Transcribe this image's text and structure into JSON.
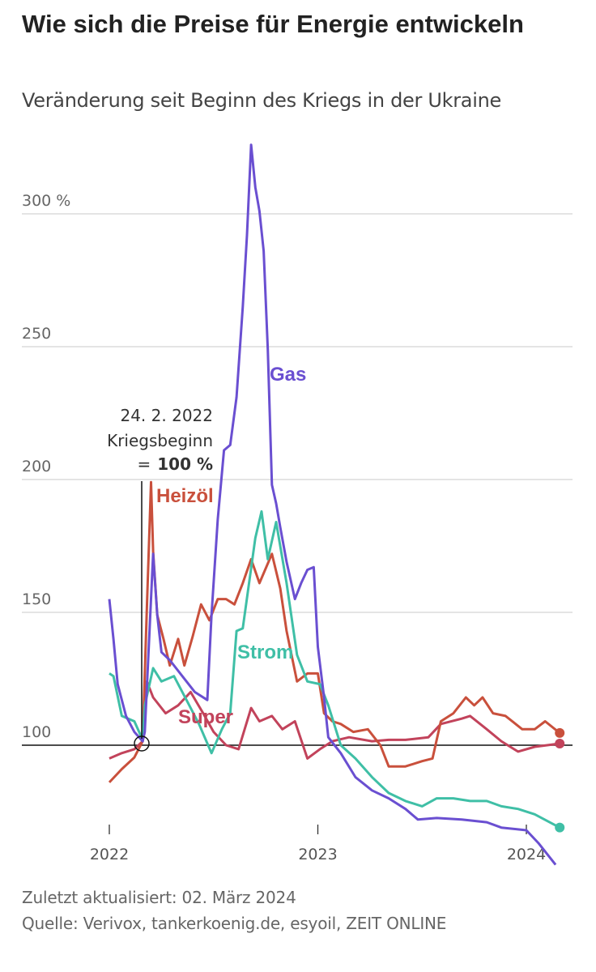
{
  "header": {
    "title": "Wie sich die Preise für Energie entwickeln",
    "subtitle": "Veränderung seit Beginn des Kriegs in der Ukraine"
  },
  "footer": {
    "updated": "Zuletzt aktualisiert: 02. März 2024",
    "source": "Quelle: Verivox, tankerkoenig.de, esyoil, ZEIT ONLINE"
  },
  "chart_data": {
    "type": "line",
    "title": "Wie sich die Preise für Energie entwickeln",
    "subtitle": "Veränderung seit Beginn des Kriegs in der Ukraine",
    "xlabel": "",
    "ylabel": "",
    "xlim": [
      2021.75,
      2024.2
    ],
    "ylim": [
      50,
      330
    ],
    "y_ticks": [
      100,
      150,
      200,
      250,
      300
    ],
    "y_tick_labels": [
      "100",
      "150",
      "200",
      "250",
      "300 %"
    ],
    "x_ticks": [
      2022,
      2023,
      2024
    ],
    "x_tick_labels": [
      "2022",
      "2023",
      "2024"
    ],
    "grid": "horizontal",
    "baseline": 100,
    "annotation": {
      "date_label": "24. 2. 2022",
      "text": "Kriegsbeginn",
      "eq": "=",
      "value": "100 %",
      "x": 2022.16,
      "y": 100
    },
    "series": [
      {
        "name": "Gas",
        "color": "#6a4fd1",
        "end_dot": false,
        "points": [
          [
            2022.0,
            155
          ],
          [
            2022.02,
            140
          ],
          [
            2022.04,
            123
          ],
          [
            2022.08,
            111
          ],
          [
            2022.12,
            105
          ],
          [
            2022.16,
            101.5
          ],
          [
            2022.17,
            105
          ],
          [
            2022.21,
            172
          ],
          [
            2022.23,
            149
          ],
          [
            2022.25,
            135
          ],
          [
            2022.29,
            132
          ],
          [
            2022.35,
            126
          ],
          [
            2022.41,
            120
          ],
          [
            2022.47,
            117
          ],
          [
            2022.49,
            149
          ],
          [
            2022.52,
            185
          ],
          [
            2022.55,
            211
          ],
          [
            2022.58,
            213
          ],
          [
            2022.61,
            231
          ],
          [
            2022.64,
            265
          ],
          [
            2022.66,
            292
          ],
          [
            2022.68,
            326
          ],
          [
            2022.7,
            310
          ],
          [
            2022.72,
            301
          ],
          [
            2022.74,
            286
          ],
          [
            2022.76,
            249
          ],
          [
            2022.78,
            198
          ],
          [
            2022.8,
            191
          ],
          [
            2022.82,
            182
          ],
          [
            2022.85,
            169
          ],
          [
            2022.89,
            155
          ],
          [
            2022.92,
            161
          ],
          [
            2022.95,
            166
          ],
          [
            2022.98,
            167
          ],
          [
            2023.0,
            137
          ],
          [
            2023.03,
            118
          ],
          [
            2023.05,
            103
          ],
          [
            2023.11,
            97
          ],
          [
            2023.18,
            88
          ],
          [
            2023.26,
            83
          ],
          [
            2023.34,
            80
          ],
          [
            2023.42,
            76
          ],
          [
            2023.48,
            72
          ],
          [
            2023.57,
            72.6
          ],
          [
            2023.69,
            72
          ],
          [
            2023.81,
            71
          ],
          [
            2023.88,
            69
          ],
          [
            2024.0,
            68
          ],
          [
            2024.06,
            63
          ],
          [
            2024.14,
            55
          ]
        ]
      },
      {
        "name": "Heizöl",
        "color": "#c9503c",
        "end_dot": true,
        "points": [
          [
            2022.0,
            86
          ],
          [
            2022.06,
            91
          ],
          [
            2022.12,
            95.4
          ],
          [
            2022.16,
            101.5
          ],
          [
            2022.18,
            152
          ],
          [
            2022.2,
            199
          ],
          [
            2022.21,
            173
          ],
          [
            2022.23,
            149
          ],
          [
            2022.26,
            140
          ],
          [
            2022.29,
            130
          ],
          [
            2022.33,
            140
          ],
          [
            2022.36,
            130
          ],
          [
            2022.4,
            141
          ],
          [
            2022.44,
            153
          ],
          [
            2022.48,
            147
          ],
          [
            2022.52,
            155
          ],
          [
            2022.56,
            155
          ],
          [
            2022.6,
            153
          ],
          [
            2022.64,
            161
          ],
          [
            2022.68,
            170
          ],
          [
            2022.72,
            161
          ],
          [
            2022.78,
            172
          ],
          [
            2022.82,
            159
          ],
          [
            2022.85,
            143
          ],
          [
            2022.9,
            124
          ],
          [
            2022.95,
            127
          ],
          [
            2023.0,
            127
          ],
          [
            2023.03,
            112
          ],
          [
            2023.07,
            109
          ],
          [
            2023.11,
            108
          ],
          [
            2023.17,
            105
          ],
          [
            2023.24,
            106
          ],
          [
            2023.3,
            100
          ],
          [
            2023.34,
            92
          ],
          [
            2023.42,
            92
          ],
          [
            2023.5,
            94
          ],
          [
            2023.55,
            95
          ],
          [
            2023.59,
            109
          ],
          [
            2023.65,
            112
          ],
          [
            2023.71,
            118
          ],
          [
            2023.75,
            115
          ],
          [
            2023.79,
            118
          ],
          [
            2023.84,
            112
          ],
          [
            2023.9,
            111
          ],
          [
            2023.98,
            106
          ],
          [
            2024.04,
            106
          ],
          [
            2024.09,
            109
          ],
          [
            2024.16,
            104.6
          ]
        ]
      },
      {
        "name": "Strom",
        "color": "#3fbfa6",
        "end_dot": true,
        "points": [
          [
            2022.0,
            127
          ],
          [
            2022.02,
            126
          ],
          [
            2022.06,
            111
          ],
          [
            2022.12,
            109
          ],
          [
            2022.16,
            102
          ],
          [
            2022.17,
            115
          ],
          [
            2022.21,
            129
          ],
          [
            2022.25,
            124
          ],
          [
            2022.31,
            126
          ],
          [
            2022.37,
            117
          ],
          [
            2022.43,
            108
          ],
          [
            2022.49,
            97
          ],
          [
            2022.54,
            106
          ],
          [
            2022.58,
            112
          ],
          [
            2022.61,
            143
          ],
          [
            2022.64,
            144
          ],
          [
            2022.7,
            178
          ],
          [
            2022.73,
            188
          ],
          [
            2022.76,
            170
          ],
          [
            2022.8,
            184
          ],
          [
            2022.85,
            161
          ],
          [
            2022.9,
            134
          ],
          [
            2022.95,
            124
          ],
          [
            2023.01,
            123
          ],
          [
            2023.05,
            115
          ],
          [
            2023.11,
            100
          ],
          [
            2023.18,
            95
          ],
          [
            2023.26,
            88
          ],
          [
            2023.34,
            82
          ],
          [
            2023.42,
            79
          ],
          [
            2023.5,
            77
          ],
          [
            2023.57,
            80
          ],
          [
            2023.65,
            80
          ],
          [
            2023.73,
            79
          ],
          [
            2023.81,
            79
          ],
          [
            2023.88,
            77
          ],
          [
            2023.96,
            76
          ],
          [
            2024.04,
            74
          ],
          [
            2024.16,
            69
          ]
        ]
      },
      {
        "name": "Super",
        "color": "#c2435b",
        "end_dot": true,
        "points": [
          [
            2022.0,
            95
          ],
          [
            2022.06,
            97
          ],
          [
            2022.12,
            98.5
          ],
          [
            2022.16,
            101.5
          ],
          [
            2022.18,
            124
          ],
          [
            2022.21,
            118
          ],
          [
            2022.27,
            112
          ],
          [
            2022.33,
            115
          ],
          [
            2022.39,
            120
          ],
          [
            2022.45,
            112
          ],
          [
            2022.5,
            105
          ],
          [
            2022.56,
            100
          ],
          [
            2022.62,
            98.5
          ],
          [
            2022.68,
            114
          ],
          [
            2022.72,
            109
          ],
          [
            2022.78,
            111
          ],
          [
            2022.83,
            106
          ],
          [
            2022.89,
            109
          ],
          [
            2022.95,
            95
          ],
          [
            2023.01,
            98.5
          ],
          [
            2023.07,
            101.5
          ],
          [
            2023.15,
            103
          ],
          [
            2023.26,
            101.5
          ],
          [
            2023.34,
            102
          ],
          [
            2023.42,
            102
          ],
          [
            2023.53,
            103
          ],
          [
            2023.59,
            108
          ],
          [
            2023.69,
            110
          ],
          [
            2023.73,
            111
          ],
          [
            2023.81,
            106
          ],
          [
            2023.88,
            101.5
          ],
          [
            2023.96,
            97.6
          ],
          [
            2024.04,
            99.4
          ],
          [
            2024.16,
            100.6
          ]
        ]
      }
    ]
  }
}
